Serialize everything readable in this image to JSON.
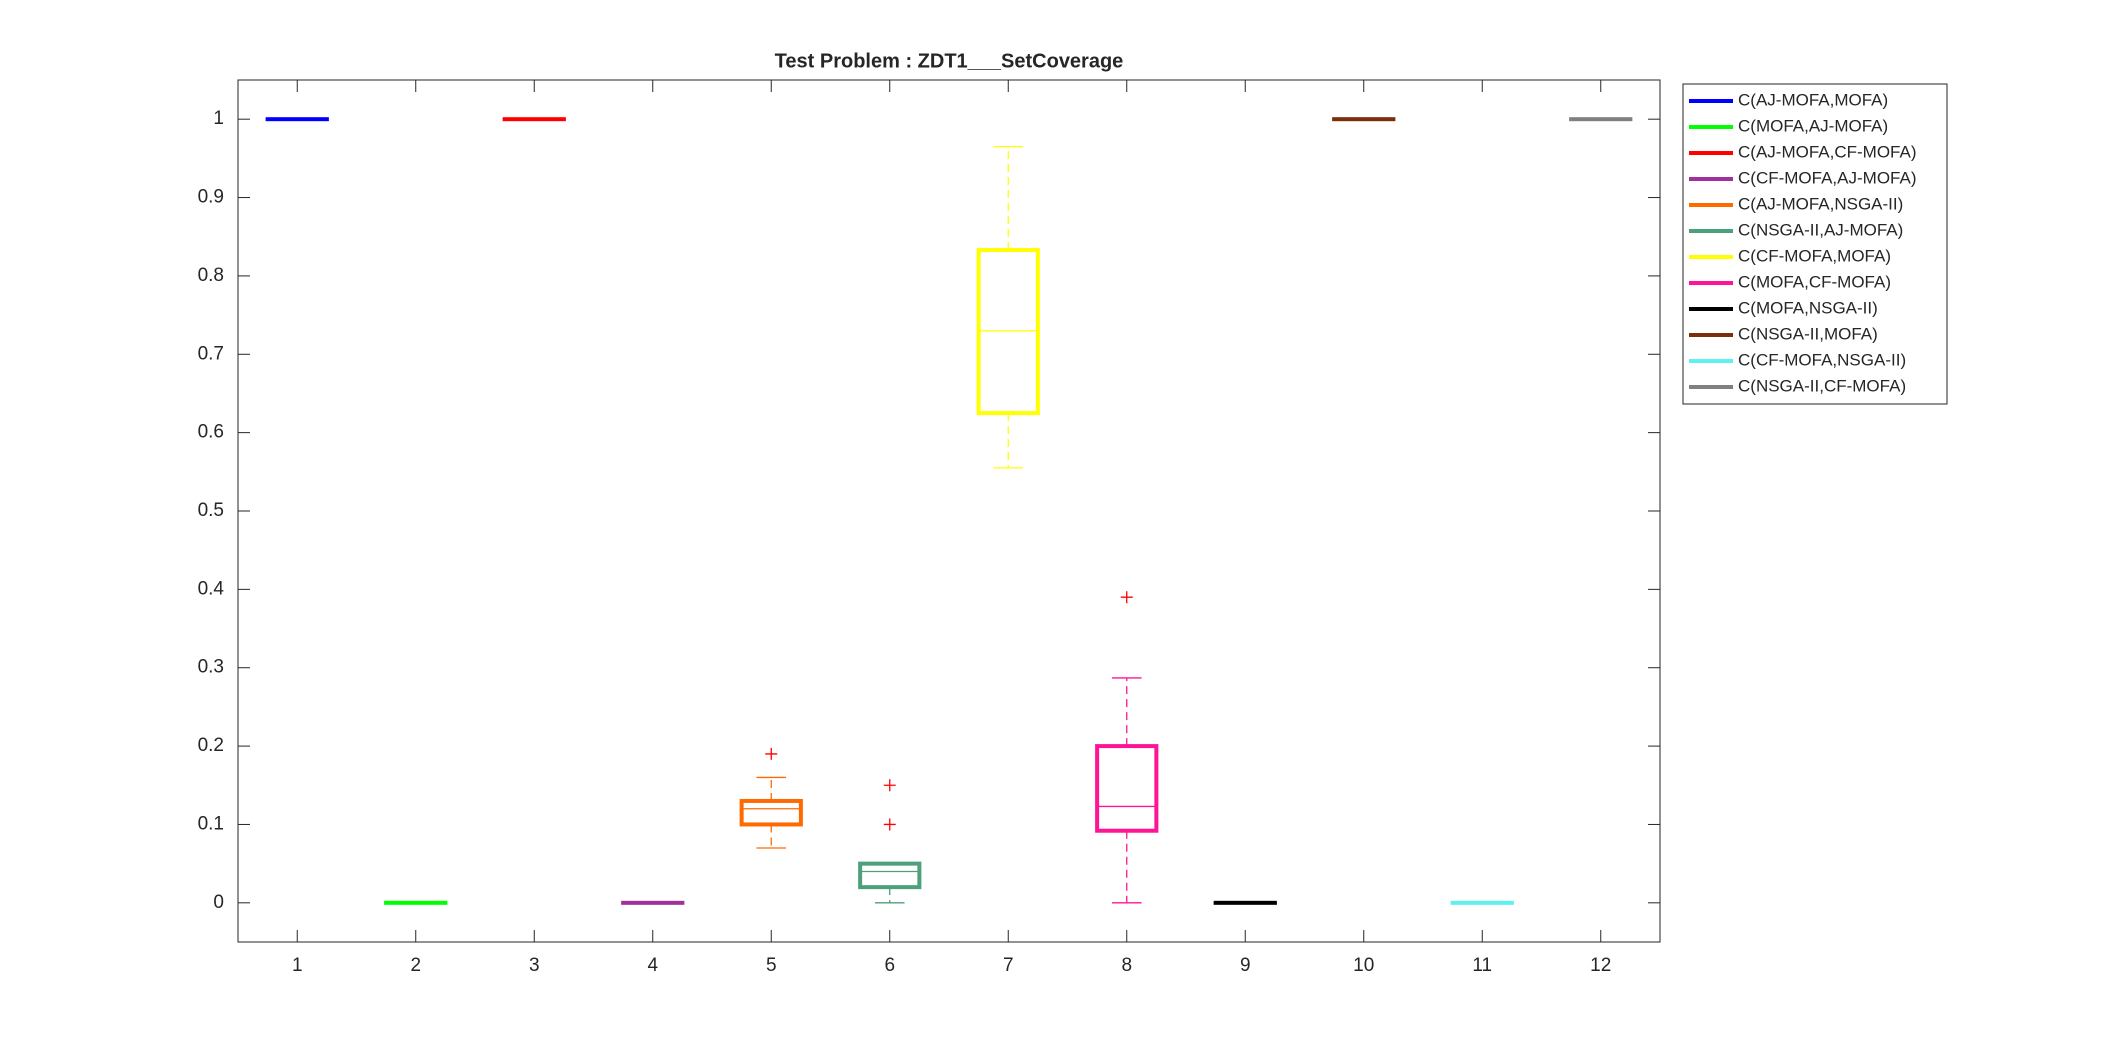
{
  "chart_data": {
    "type": "box",
    "title": "Test Problem : ZDT1___SetCoverage",
    "x": [
      1,
      2,
      3,
      4,
      5,
      6,
      7,
      8,
      9,
      10,
      11,
      12
    ],
    "xlim": [
      0.5,
      12.5
    ],
    "xticks": [
      1,
      2,
      3,
      4,
      5,
      6,
      7,
      8,
      9,
      10,
      11,
      12
    ],
    "ylim": [
      -0.05,
      1.05
    ],
    "yticks": [
      0,
      0.1,
      0.2,
      0.3,
      0.4,
      0.5,
      0.6,
      0.7,
      0.8,
      0.9,
      1
    ],
    "legend_location": "northeastoutside",
    "outlier_color": "#ff0000",
    "series": [
      {
        "name": "C(AJ-MOFA,MOFA)",
        "color": "#0000ff",
        "min": 1,
        "q1": 1,
        "median": 1,
        "q3": 1,
        "max": 1,
        "outliers": []
      },
      {
        "name": "C(MOFA,AJ-MOFA)",
        "color": "#00ff00",
        "min": 0,
        "q1": 0,
        "median": 0,
        "q3": 0,
        "max": 0,
        "outliers": []
      },
      {
        "name": "C(AJ-MOFA,CF-MOFA)",
        "color": "#ff0000",
        "min": 1,
        "q1": 1,
        "median": 1,
        "q3": 1,
        "max": 1,
        "outliers": []
      },
      {
        "name": "C(CF-MOFA,AJ-MOFA)",
        "color": "#a0309a",
        "min": 0,
        "q1": 0,
        "median": 0,
        "q3": 0,
        "max": 0,
        "outliers": []
      },
      {
        "name": "C(AJ-MOFA,NSGA-II)",
        "color": "#ff6a00",
        "min": 0.07,
        "q1": 0.1,
        "median": 0.12,
        "q3": 0.13,
        "max": 0.16,
        "outliers": [
          0.19
        ]
      },
      {
        "name": "C(NSGA-II,AJ-MOFA)",
        "color": "#4ca07a",
        "min": 0,
        "q1": 0.02,
        "median": 0.04,
        "q3": 0.05,
        "max": 0.05,
        "outliers": [
          0.1,
          0.15
        ]
      },
      {
        "name": "C(CF-MOFA,MOFA)",
        "color": "#ffff00",
        "min": 0.555,
        "q1": 0.625,
        "median": 0.73,
        "q3": 0.833,
        "max": 0.965,
        "outliers": []
      },
      {
        "name": "C(MOFA,CF-MOFA)",
        "color": "#ff1493",
        "min": 0,
        "q1": 0.092,
        "median": 0.123,
        "q3": 0.2,
        "max": 0.287,
        "outliers": [
          0.39
        ]
      },
      {
        "name": "C(MOFA,NSGA-II)",
        "color": "#000000",
        "min": 0,
        "q1": 0,
        "median": 0,
        "q3": 0,
        "max": 0,
        "outliers": []
      },
      {
        "name": "C(NSGA-II,MOFA)",
        "color": "#7a2e0a",
        "min": 1,
        "q1": 1,
        "median": 1,
        "q3": 1,
        "max": 1,
        "outliers": []
      },
      {
        "name": "C(CF-MOFA,NSGA-II)",
        "color": "#5ff0f0",
        "min": 0,
        "q1": 0,
        "median": 0,
        "q3": 0,
        "max": 0,
        "outliers": []
      },
      {
        "name": "C(NSGA-II,CF-MOFA)",
        "color": "#808080",
        "min": 1,
        "q1": 1,
        "median": 1,
        "q3": 1,
        "max": 1,
        "outliers": []
      }
    ]
  }
}
